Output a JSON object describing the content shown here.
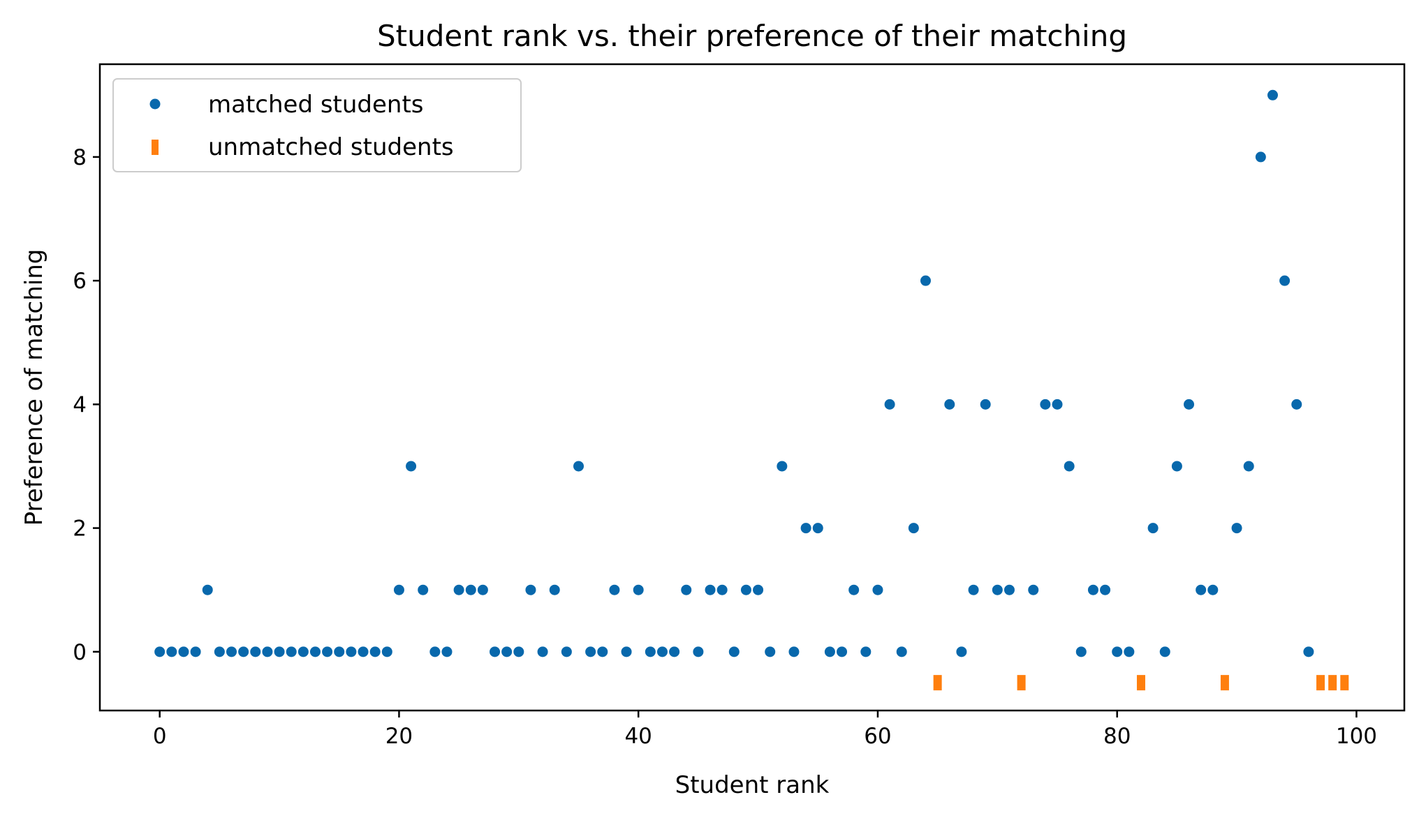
{
  "chart_data": {
    "type": "scatter",
    "title": "Student rank vs. their preference of their matching",
    "xlabel": "Student rank",
    "ylabel": "Preference of matching",
    "xlim": [
      -5,
      104
    ],
    "ylim": [
      -0.95,
      9.5
    ],
    "xticks": [
      0,
      20,
      40,
      60,
      80,
      100
    ],
    "yticks": [
      0,
      2,
      4,
      6,
      8
    ],
    "grid": false,
    "legend_position": "top-left",
    "series": [
      {
        "name": "matched students",
        "marker": "circle",
        "color": "#0868ac",
        "points": [
          [
            0,
            0
          ],
          [
            1,
            0
          ],
          [
            2,
            0
          ],
          [
            3,
            0
          ],
          [
            4,
            1
          ],
          [
            5,
            0
          ],
          [
            6,
            0
          ],
          [
            7,
            0
          ],
          [
            8,
            0
          ],
          [
            9,
            0
          ],
          [
            10,
            0
          ],
          [
            11,
            0
          ],
          [
            12,
            0
          ],
          [
            13,
            0
          ],
          [
            14,
            0
          ],
          [
            15,
            0
          ],
          [
            16,
            0
          ],
          [
            17,
            0
          ],
          [
            18,
            0
          ],
          [
            19,
            0
          ],
          [
            20,
            1
          ],
          [
            21,
            3
          ],
          [
            22,
            1
          ],
          [
            23,
            0
          ],
          [
            24,
            0
          ],
          [
            25,
            1
          ],
          [
            26,
            1
          ],
          [
            27,
            1
          ],
          [
            28,
            0
          ],
          [
            29,
            0
          ],
          [
            30,
            0
          ],
          [
            31,
            1
          ],
          [
            32,
            0
          ],
          [
            33,
            1
          ],
          [
            34,
            0
          ],
          [
            35,
            3
          ],
          [
            36,
            0
          ],
          [
            37,
            0
          ],
          [
            38,
            1
          ],
          [
            39,
            0
          ],
          [
            40,
            1
          ],
          [
            41,
            0
          ],
          [
            42,
            0
          ],
          [
            43,
            0
          ],
          [
            44,
            1
          ],
          [
            45,
            0
          ],
          [
            46,
            1
          ],
          [
            47,
            1
          ],
          [
            48,
            0
          ],
          [
            49,
            1
          ],
          [
            50,
            1
          ],
          [
            51,
            0
          ],
          [
            52,
            3
          ],
          [
            53,
            0
          ],
          [
            54,
            2
          ],
          [
            55,
            2
          ],
          [
            56,
            0
          ],
          [
            57,
            0
          ],
          [
            58,
            1
          ],
          [
            59,
            0
          ],
          [
            60,
            1
          ],
          [
            61,
            4
          ],
          [
            62,
            0
          ],
          [
            63,
            2
          ],
          [
            64,
            6
          ],
          [
            66,
            4
          ],
          [
            67,
            0
          ],
          [
            68,
            1
          ],
          [
            69,
            4
          ],
          [
            70,
            1
          ],
          [
            71,
            1
          ],
          [
            73,
            1
          ],
          [
            74,
            4
          ],
          [
            75,
            4
          ],
          [
            76,
            3
          ],
          [
            77,
            0
          ],
          [
            78,
            1
          ],
          [
            79,
            1
          ],
          [
            80,
            0
          ],
          [
            81,
            0
          ],
          [
            83,
            2
          ],
          [
            84,
            0
          ],
          [
            85,
            3
          ],
          [
            86,
            4
          ],
          [
            87,
            1
          ],
          [
            88,
            1
          ],
          [
            90,
            2
          ],
          [
            91,
            3
          ],
          [
            92,
            8
          ],
          [
            93,
            9
          ],
          [
            94,
            6
          ],
          [
            95,
            4
          ],
          [
            96,
            0
          ]
        ]
      },
      {
        "name": "unmatched students",
        "marker": "rect",
        "color": "#ff7f0e",
        "points": [
          [
            65,
            -0.5
          ],
          [
            72,
            -0.5
          ],
          [
            82,
            -0.5
          ],
          [
            89,
            -0.5
          ],
          [
            97,
            -0.5
          ],
          [
            98,
            -0.5
          ],
          [
            99,
            -0.5
          ]
        ]
      }
    ]
  }
}
